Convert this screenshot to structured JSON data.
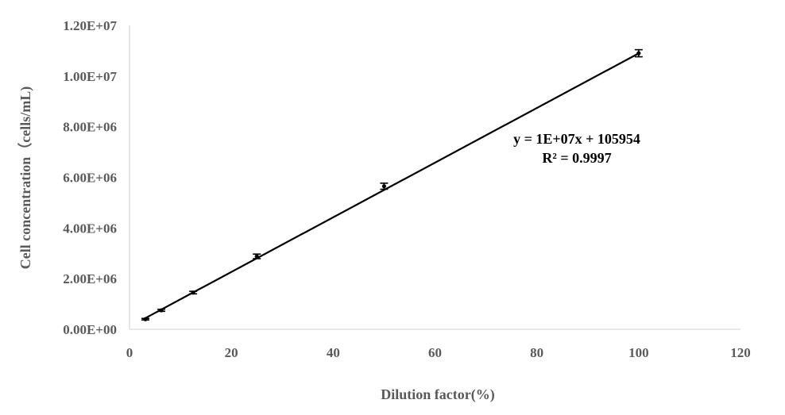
{
  "chart_data": {
    "type": "scatter",
    "xlabel": "Dilution factor(%)",
    "ylabel": "Cell concentration（cells/mL)",
    "xlim": [
      0,
      120
    ],
    "ylim": [
      0,
      12000000
    ],
    "x_ticks": [
      0,
      20,
      40,
      60,
      80,
      100,
      120
    ],
    "x_tick_labels": [
      "0",
      "20",
      "40",
      "60",
      "80",
      "100",
      "120"
    ],
    "y_ticks": [
      0,
      2000000,
      4000000,
      6000000,
      8000000,
      10000000,
      12000000
    ],
    "y_tick_labels": [
      "0.00E+00",
      "2.00E+06",
      "4.00E+06",
      "6.00E+06",
      "8.00E+06",
      "1.00E+07",
      "1.20E+07"
    ],
    "grid": false,
    "series": [
      {
        "x": [
          3.125,
          6.25,
          12.5,
          25,
          50,
          100
        ],
        "y": [
          400000,
          750000,
          1450000,
          2880000,
          5650000,
          10900000
        ],
        "error": [
          30000,
          40000,
          50000,
          90000,
          120000,
          140000
        ]
      }
    ],
    "trendline": {
      "slope": 10790000,
      "intercept": 105954,
      "x_range": [
        3,
        100
      ],
      "equation": "y = 1E+07x + 105954",
      "r_squared": "R² = 0.9997"
    }
  }
}
